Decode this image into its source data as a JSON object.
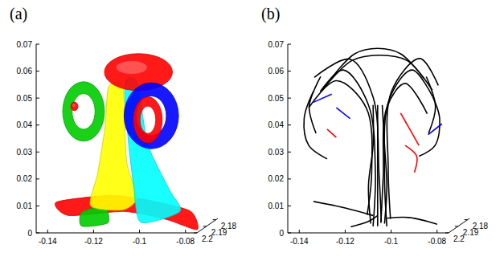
{
  "chart_data": [
    {
      "type": "isosurface",
      "title": "(a)",
      "grid": false,
      "xlim": [
        -0.145,
        -0.075
      ],
      "ylim": [
        2.178,
        2.2
      ],
      "zlim": [
        0,
        0.07
      ],
      "xticks": [
        -0.14,
        -0.12,
        -0.1,
        -0.08
      ],
      "yticks": [
        2.18,
        2.19,
        2.2
      ],
      "zticks": [
        0,
        0.01,
        0.02,
        0.03,
        0.04,
        0.05,
        0.06,
        0.07
      ],
      "series": [
        {
          "marker": "sheet",
          "color": "#ff0000",
          "x": [
            -0.142,
            -0.12,
            -0.105,
            -0.085,
            -0.077,
            -0.09,
            -0.11,
            -0.135
          ],
          "y": [
            2.186,
            2.184,
            2.182,
            2.183,
            2.195,
            2.196,
            2.192,
            2.19
          ],
          "z": [
            0.008,
            0.01,
            0.008,
            0.004,
            0.0,
            0.004,
            0.006,
            0.004
          ]
        },
        {
          "marker": "sheet",
          "color": "#00cc00",
          "x": [
            -0.128,
            -0.118,
            -0.115,
            -0.126
          ],
          "y": [
            2.193,
            2.193,
            2.197,
            2.198
          ],
          "z": [
            0.006,
            0.008,
            0.003,
            0.002
          ]
        },
        {
          "marker": "sheet",
          "color": "#ffff00",
          "x": [
            -0.1176,
            -0.1114,
            -0.1098,
            -0.1052,
            -0.1114,
            -0.1254,
            -0.1223,
            -0.1192
          ],
          "y": [
            2.19,
            2.19,
            2.19,
            2.19,
            2.19,
            2.19,
            2.19,
            2.19
          ],
          "z": [
            0.0517,
            0.0517,
            0.0243,
            0.0107,
            0.0061,
            0.0076,
            0.0198,
            0.0365
          ]
        },
        {
          "marker": "sheet",
          "color": "#00ffff",
          "x": [
            -0.1105,
            -0.1052,
            -0.1005,
            -0.0912,
            -0.0865,
            -0.1036,
            -0.1067,
            -0.1092
          ],
          "y": [
            2.19,
            2.19,
            2.19,
            2.19,
            2.19,
            2.19,
            2.19,
            2.19
          ],
          "z": [
            0.0533,
            0.0533,
            0.0304,
            0.0137,
            0.0055,
            0.0015,
            0.0152,
            0.0335
          ]
        },
        {
          "marker": "ellipsoid",
          "color": "#ff0000",
          "x": -0.1046,
          "y": 2.19,
          "z": 0.0572,
          "size": [
            0.0146,
            0.006,
            0.0067
          ]
        },
        {
          "marker": "ring",
          "color": "#00cc00",
          "x": -0.1285,
          "y": 2.19,
          "z": 0.0426,
          "size": [
            0.009,
            0.003,
            0.011
          ]
        },
        {
          "marker": "ellipsoid",
          "color": "#ff0000",
          "x": -0.1325,
          "y": 2.19,
          "z": 0.0445,
          "size": [
            0.0015,
            0.001,
            0.0016
          ]
        },
        {
          "marker": "ring",
          "color": "#0000ff",
          "x": -0.099,
          "y": 2.19,
          "z": 0.041,
          "size": [
            0.0118,
            0.003,
            0.0122
          ]
        },
        {
          "marker": "ring",
          "color": "#ff0000",
          "x": -0.1005,
          "y": 2.19,
          "z": 0.0395,
          "size": [
            0.0062,
            0.002,
            0.0085
          ]
        }
      ]
    },
    {
      "type": "line",
      "title": "(b)",
      "grid": false,
      "xlim": [
        -0.145,
        -0.075
      ],
      "ylim": [
        2.178,
        2.2
      ],
      "zlim": [
        0,
        0.07
      ],
      "xticks": [
        -0.14,
        -0.12,
        -0.1,
        -0.08
      ],
      "yticks": [
        2.18,
        2.19,
        2.2
      ],
      "zticks": [
        0,
        0.01,
        0.02,
        0.03,
        0.04,
        0.05,
        0.06,
        0.07
      ],
      "series": [
        {
          "color": "#000000",
          "x": [
            -0.112,
            -0.111,
            -0.114,
            -0.125,
            -0.135
          ],
          "y": [
            2.19,
            2.19,
            2.19,
            2.19,
            2.19
          ],
          "z": [
            0.0,
            0.02,
            0.045,
            0.058,
            0.05
          ]
        },
        {
          "color": "#000000",
          "x": [
            -0.108,
            -0.109,
            -0.112,
            -0.122,
            -0.138
          ],
          "y": [
            2.191,
            2.191,
            2.19,
            2.19,
            2.189
          ],
          "z": [
            0.002,
            0.02,
            0.048,
            0.062,
            0.055
          ]
        },
        {
          "color": "#000000",
          "x": [
            -0.115,
            -0.113,
            -0.115,
            -0.128,
            -0.14
          ],
          "y": [
            2.189,
            2.189,
            2.19,
            2.19,
            2.19
          ],
          "z": [
            0.004,
            0.02,
            0.044,
            0.054,
            0.044
          ]
        },
        {
          "color": "#000000",
          "x": [
            -0.106,
            -0.107,
            -0.105,
            -0.095,
            -0.086
          ],
          "y": [
            2.19,
            2.19,
            2.19,
            2.19,
            2.19
          ],
          "z": [
            0.0,
            0.02,
            0.047,
            0.058,
            0.048
          ]
        },
        {
          "color": "#000000",
          "x": [
            -0.104,
            -0.105,
            -0.104,
            -0.092,
            -0.084
          ],
          "y": [
            2.191,
            2.191,
            2.19,
            2.189,
            2.189
          ],
          "z": [
            0.003,
            0.022,
            0.05,
            0.062,
            0.052
          ]
        },
        {
          "color": "#000000",
          "x": [
            -0.109,
            -0.108,
            -0.106,
            -0.098,
            -0.088
          ],
          "y": [
            2.189,
            2.189,
            2.19,
            2.19,
            2.191
          ],
          "z": [
            0.001,
            0.018,
            0.044,
            0.053,
            0.042
          ]
        },
        {
          "color": "#000000",
          "x": [
            -0.13,
            -0.12,
            -0.11,
            -0.1,
            -0.09
          ],
          "y": [
            2.19,
            2.19,
            2.19,
            2.19,
            2.19
          ],
          "z": [
            0.055,
            0.064,
            0.066,
            0.064,
            0.055
          ]
        },
        {
          "color": "#000000",
          "x": [
            -0.135,
            -0.122,
            -0.11,
            -0.098,
            -0.087
          ],
          "y": [
            2.188,
            2.188,
            2.188,
            2.188,
            2.188
          ],
          "z": [
            0.05,
            0.061,
            0.063,
            0.061,
            0.05
          ]
        },
        {
          "color": "#000000",
          "x": [
            -0.138,
            -0.142,
            -0.14,
            -0.132
          ],
          "y": [
            2.19,
            2.19,
            2.19,
            2.19
          ],
          "z": [
            0.05,
            0.04,
            0.03,
            0.025
          ]
        },
        {
          "color": "#000000",
          "x": [
            -0.086,
            -0.083,
            -0.085,
            -0.092
          ],
          "y": [
            2.19,
            2.19,
            2.19,
            2.19
          ],
          "z": [
            0.048,
            0.04,
            0.03,
            0.026
          ]
        },
        {
          "color": "#000000",
          "x": [
            -0.134,
            -0.139,
            -0.136
          ],
          "y": [
            2.192,
            2.192,
            2.192
          ],
          "z": [
            0.056,
            0.045,
            0.035
          ]
        },
        {
          "color": "#000000",
          "x": [
            -0.088,
            -0.084,
            -0.087
          ],
          "y": [
            2.192,
            2.192,
            2.192
          ],
          "z": [
            0.056,
            0.045,
            0.035
          ]
        },
        {
          "color": "#000000",
          "x": [
            -0.112,
            -0.125,
            -0.14
          ],
          "y": [
            2.19,
            2.187,
            2.185
          ],
          "z": [
            0.004,
            0.006,
            0.008
          ]
        },
        {
          "color": "#000000",
          "x": [
            -0.106,
            -0.095,
            -0.082
          ],
          "y": [
            2.19,
            2.193,
            2.195
          ],
          "z": [
            0.003,
            0.004,
            0.002
          ]
        },
        {
          "color": "#000000",
          "x": [
            -0.11,
            -0.112,
            -0.118
          ],
          "y": [
            2.19,
            2.195,
            2.199
          ],
          "z": [
            0.004,
            0.003,
            0.002
          ]
        },
        {
          "color": "#000000",
          "x": [
            -0.11,
            -0.11,
            -0.11,
            -0.11
          ],
          "y": [
            2.19,
            2.19,
            2.19,
            2.19
          ],
          "z": [
            0.0,
            0.015,
            0.03,
            0.045
          ]
        },
        {
          "color": "#000000",
          "x": [
            -0.107,
            -0.106,
            -0.107,
            -0.108
          ],
          "y": [
            2.19,
            2.19,
            2.19,
            2.19
          ],
          "z": [
            0.001,
            0.015,
            0.03,
            0.045
          ]
        },
        {
          "color": "#000000",
          "x": [
            -0.113,
            -0.114,
            -0.112,
            -0.112
          ],
          "y": [
            2.19,
            2.19,
            2.19,
            2.19
          ],
          "z": [
            0.001,
            0.015,
            0.03,
            0.045
          ]
        },
        {
          "color": "#ff0000",
          "x": [
            -0.1,
            -0.096,
            -0.092
          ],
          "y": [
            2.19,
            2.19,
            2.19
          ],
          "z": [
            0.042,
            0.036,
            0.03
          ]
        },
        {
          "color": "#ff0000",
          "x": [
            -0.098,
            -0.093,
            -0.094
          ],
          "y": [
            2.19,
            2.19,
            2.19
          ],
          "z": [
            0.03,
            0.026,
            0.02
          ]
        },
        {
          "color": "#ff0000",
          "x": [
            -0.132,
            -0.128
          ],
          "y": [
            2.19,
            2.19
          ],
          "z": [
            0.036,
            0.033
          ]
        },
        {
          "color": "#0000ff",
          "x": [
            -0.138,
            -0.13
          ],
          "y": [
            2.19,
            2.19
          ],
          "z": [
            0.046,
            0.049
          ]
        },
        {
          "color": "#0000ff",
          "x": [
            -0.088,
            -0.082
          ],
          "y": [
            2.19,
            2.19
          ],
          "z": [
            0.034,
            0.038
          ]
        },
        {
          "color": "#0000ff",
          "x": [
            -0.128,
            -0.122
          ],
          "y": [
            2.19,
            2.19
          ],
          "z": [
            0.044,
            0.04
          ]
        }
      ]
    }
  ]
}
